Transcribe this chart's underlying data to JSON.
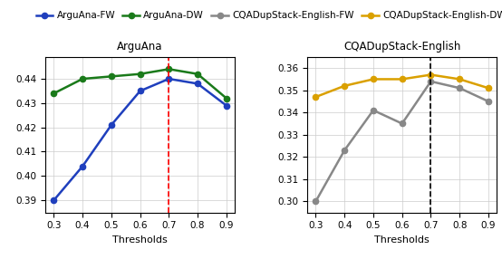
{
  "thresholds": [
    0.3,
    0.4,
    0.5,
    0.6,
    0.7,
    0.8,
    0.9
  ],
  "arguana_fw": [
    0.39,
    0.404,
    0.421,
    0.435,
    0.44,
    0.438,
    0.429
  ],
  "arguana_dw": [
    0.434,
    0.44,
    0.441,
    0.442,
    0.444,
    0.442,
    0.432
  ],
  "cqa_fw": [
    0.3,
    0.323,
    0.341,
    0.335,
    0.354,
    0.351,
    0.345
  ],
  "cqa_dw": [
    0.347,
    0.352,
    0.355,
    0.355,
    0.357,
    0.355,
    0.351
  ],
  "arguana_title": "ArguAna",
  "cqa_title": "CQADupStack-English",
  "xlabel": "Thresholds",
  "arguana_ylim": [
    0.385,
    0.449
  ],
  "arguana_yticks": [
    0.39,
    0.4,
    0.41,
    0.42,
    0.43,
    0.44
  ],
  "cqa_ylim": [
    0.295,
    0.365
  ],
  "cqa_yticks": [
    0.3,
    0.31,
    0.32,
    0.33,
    0.34,
    0.35,
    0.36
  ],
  "vline_x": 0.7,
  "vline_color_left": "red",
  "vline_color_right": "black",
  "color_fw_arguana": "#1f3fbd",
  "color_dw_arguana": "#1a7a1a",
  "color_fw_cqa": "#888888",
  "color_dw_cqa": "#DAA000",
  "legend_labels": [
    "ArguAna-FW",
    "ArguAna-DW",
    "CQADupStack-English-FW",
    "CQADupStack-English-DW"
  ],
  "marker": "o",
  "linewidth": 1.8,
  "markersize": 4.5,
  "title_fontsize": 8.5,
  "label_fontsize": 8,
  "tick_fontsize": 7.5,
  "legend_fontsize": 7.5
}
